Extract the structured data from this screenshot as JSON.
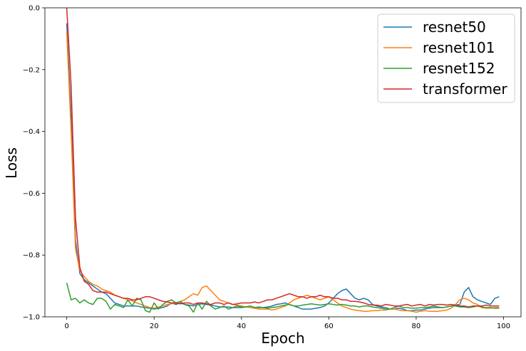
{
  "chart_data": {
    "type": "line",
    "title": "",
    "xlabel": "Epoch",
    "ylabel": "Loss",
    "xlim": [
      -5,
      104
    ],
    "ylim": [
      -1.0,
      0.0
    ],
    "x_ticks": [
      0,
      20,
      40,
      60,
      80,
      100
    ],
    "x_tick_labels": [
      "0",
      "20",
      "40",
      "60",
      "80",
      "100"
    ],
    "y_ticks": [
      0.0,
      -0.2,
      -0.4,
      -0.6,
      -0.8,
      -1.0
    ],
    "y_tick_labels": [
      "0.0",
      "−0.2",
      "−0.4",
      "−0.6",
      "−0.8",
      "−1.0"
    ],
    "grid": false,
    "legend_position": "top-right",
    "series": [
      {
        "name": "resnet50",
        "color": "#1f77b4",
        "values": [
          -0.05,
          -0.35,
          -0.75,
          -0.86,
          -0.88,
          -0.89,
          -0.9,
          -0.91,
          -0.92,
          -0.925,
          -0.94,
          -0.955,
          -0.96,
          -0.965,
          -0.965,
          -0.965,
          -0.965,
          -0.968,
          -0.97,
          -0.972,
          -0.975,
          -0.972,
          -0.97,
          -0.965,
          -0.955,
          -0.96,
          -0.955,
          -0.96,
          -0.962,
          -0.965,
          -0.96,
          -0.958,
          -0.96,
          -0.962,
          -0.965,
          -0.968,
          -0.968,
          -0.968,
          -0.97,
          -0.97,
          -0.97,
          -0.968,
          -0.965,
          -0.97,
          -0.97,
          -0.97,
          -0.968,
          -0.965,
          -0.96,
          -0.958,
          -0.955,
          -0.96,
          -0.965,
          -0.97,
          -0.975,
          -0.975,
          -0.975,
          -0.972,
          -0.97,
          -0.965,
          -0.955,
          -0.94,
          -0.925,
          -0.915,
          -0.91,
          -0.925,
          -0.94,
          -0.945,
          -0.94,
          -0.945,
          -0.96,
          -0.965,
          -0.968,
          -0.97,
          -0.975,
          -0.975,
          -0.972,
          -0.975,
          -0.98,
          -0.98,
          -0.978,
          -0.978,
          -0.975,
          -0.972,
          -0.97,
          -0.97,
          -0.97,
          -0.968,
          -0.965,
          -0.962,
          -0.96,
          -0.92,
          -0.905,
          -0.935,
          -0.945,
          -0.95,
          -0.955,
          -0.96,
          -0.94,
          -0.935
        ]
      },
      {
        "name": "resnet101",
        "color": "#ff7f0e",
        "values": [
          -0.08,
          -0.4,
          -0.78,
          -0.85,
          -0.87,
          -0.885,
          -0.895,
          -0.9,
          -0.91,
          -0.915,
          -0.92,
          -0.93,
          -0.935,
          -0.94,
          -0.945,
          -0.948,
          -0.955,
          -0.96,
          -0.965,
          -0.97,
          -0.972,
          -0.968,
          -0.965,
          -0.96,
          -0.958,
          -0.955,
          -0.95,
          -0.945,
          -0.935,
          -0.925,
          -0.93,
          -0.905,
          -0.9,
          -0.915,
          -0.93,
          -0.945,
          -0.95,
          -0.955,
          -0.96,
          -0.962,
          -0.965,
          -0.968,
          -0.97,
          -0.972,
          -0.975,
          -0.975,
          -0.975,
          -0.978,
          -0.975,
          -0.97,
          -0.965,
          -0.955,
          -0.945,
          -0.94,
          -0.935,
          -0.93,
          -0.935,
          -0.94,
          -0.945,
          -0.94,
          -0.935,
          -0.945,
          -0.955,
          -0.965,
          -0.97,
          -0.975,
          -0.978,
          -0.98,
          -0.982,
          -0.982,
          -0.98,
          -0.98,
          -0.978,
          -0.978,
          -0.975,
          -0.975,
          -0.978,
          -0.98,
          -0.98,
          -0.982,
          -0.985,
          -0.982,
          -0.98,
          -0.982,
          -0.982,
          -0.982,
          -0.98,
          -0.978,
          -0.972,
          -0.96,
          -0.945,
          -0.94,
          -0.945,
          -0.955,
          -0.96,
          -0.97,
          -0.972,
          -0.972,
          -0.97,
          -0.97
        ]
      },
      {
        "name": "resnet152",
        "color": "#2ca02c",
        "values": [
          -0.89,
          -0.945,
          -0.94,
          -0.955,
          -0.945,
          -0.955,
          -0.96,
          -0.94,
          -0.94,
          -0.95,
          -0.975,
          -0.96,
          -0.965,
          -0.97,
          -0.945,
          -0.965,
          -0.94,
          -0.945,
          -0.98,
          -0.985,
          -0.955,
          -0.975,
          -0.96,
          -0.95,
          -0.945,
          -0.955,
          -0.95,
          -0.96,
          -0.965,
          -0.985,
          -0.955,
          -0.975,
          -0.95,
          -0.965,
          -0.975,
          -0.97,
          -0.965,
          -0.975,
          -0.97,
          -0.965,
          -0.968,
          -0.968,
          -0.965,
          -0.97,
          -0.968,
          -0.97,
          -0.972,
          -0.97,
          -0.968,
          -0.965,
          -0.962,
          -0.96,
          -0.965,
          -0.965,
          -0.962,
          -0.96,
          -0.958,
          -0.96,
          -0.962,
          -0.96,
          -0.958,
          -0.96,
          -0.962,
          -0.96,
          -0.962,
          -0.965,
          -0.965,
          -0.968,
          -0.965,
          -0.965,
          -0.968,
          -0.97,
          -0.972,
          -0.975,
          -0.975,
          -0.97,
          -0.965,
          -0.97,
          -0.97,
          -0.972,
          -0.972,
          -0.97,
          -0.97,
          -0.968,
          -0.965,
          -0.968,
          -0.97,
          -0.968,
          -0.965,
          -0.965,
          -0.968,
          -0.968,
          -0.97,
          -0.968,
          -0.965,
          -0.968,
          -0.97,
          -0.97,
          -0.972,
          -0.972
        ]
      },
      {
        "name": "transformer",
        "color": "#d62728",
        "values": [
          0.0,
          -0.25,
          -0.68,
          -0.84,
          -0.885,
          -0.895,
          -0.915,
          -0.92,
          -0.92,
          -0.92,
          -0.925,
          -0.93,
          -0.935,
          -0.94,
          -0.94,
          -0.945,
          -0.945,
          -0.94,
          -0.935,
          -0.935,
          -0.94,
          -0.945,
          -0.95,
          -0.952,
          -0.955,
          -0.955,
          -0.958,
          -0.955,
          -0.955,
          -0.96,
          -0.955,
          -0.955,
          -0.958,
          -0.96,
          -0.955,
          -0.955,
          -0.96,
          -0.955,
          -0.96,
          -0.958,
          -0.955,
          -0.955,
          -0.955,
          -0.952,
          -0.955,
          -0.95,
          -0.945,
          -0.945,
          -0.94,
          -0.935,
          -0.93,
          -0.925,
          -0.93,
          -0.935,
          -0.935,
          -0.94,
          -0.935,
          -0.935,
          -0.93,
          -0.935,
          -0.935,
          -0.94,
          -0.94,
          -0.945,
          -0.945,
          -0.95,
          -0.95,
          -0.952,
          -0.955,
          -0.96,
          -0.962,
          -0.962,
          -0.965,
          -0.96,
          -0.962,
          -0.965,
          -0.965,
          -0.962,
          -0.96,
          -0.965,
          -0.962,
          -0.96,
          -0.965,
          -0.96,
          -0.962,
          -0.96,
          -0.96,
          -0.962,
          -0.96,
          -0.962,
          -0.965,
          -0.965,
          -0.968,
          -0.965,
          -0.965,
          -0.965,
          -0.962,
          -0.965,
          -0.965,
          -0.965
        ]
      }
    ]
  }
}
